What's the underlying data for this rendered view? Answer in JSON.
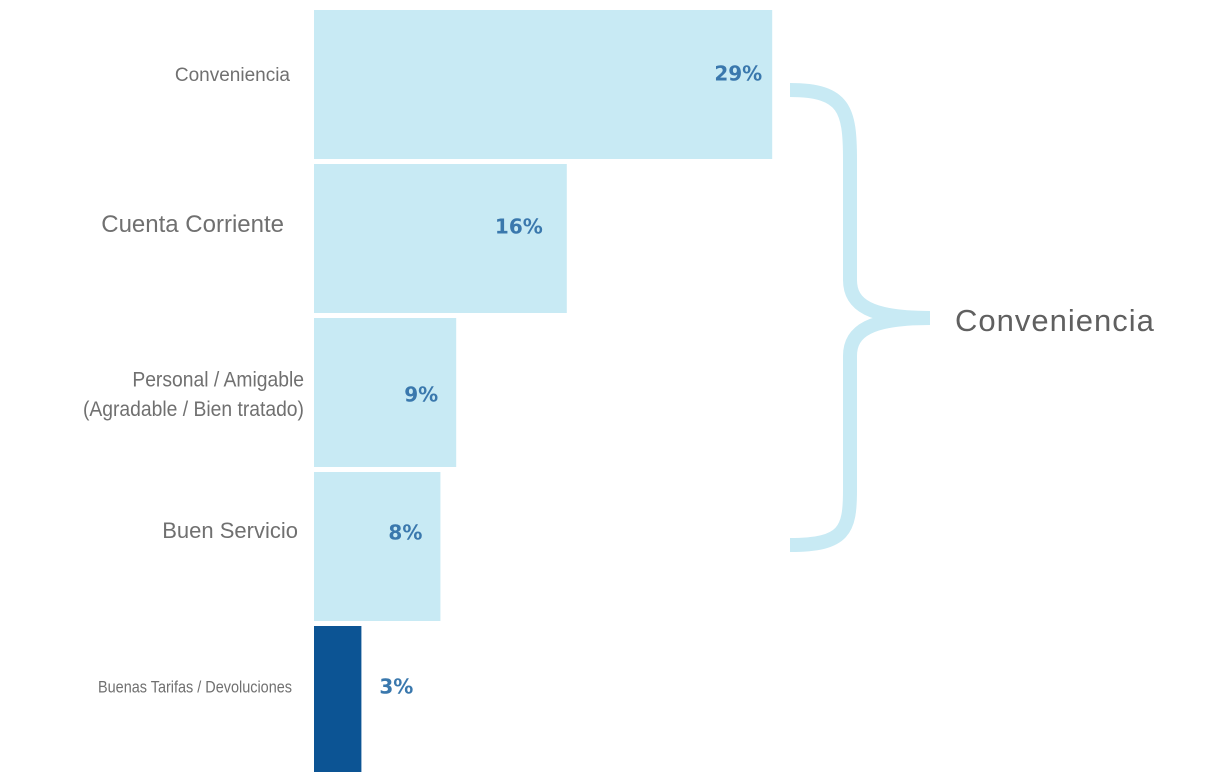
{
  "chart_data": {
    "type": "bar",
    "orientation": "horizontal",
    "categories": [
      "Conveniencia",
      "Cuenta Corriente",
      "Personal / Amigable (Agradable / Bien tratado)",
      "Buen Servicio",
      "Buenas Tarifas / Devoluciones"
    ],
    "category_lines": [
      [
        "Conveniencia"
      ],
      [
        "Cuenta Corriente"
      ],
      [
        "Personal / Amigable",
        "(Agradable / Bien tratado)"
      ],
      [
        "Buen Servicio"
      ],
      [
        "Buenas Tarifas / Devoluciones"
      ]
    ],
    "values": [
      29,
      16,
      9,
      8,
      3
    ],
    "value_labels": [
      "29%",
      "16%",
      "9%",
      "8%",
      "3%"
    ],
    "unit": "%",
    "bar_colors": [
      "#c8eaf4",
      "#c8eaf4",
      "#c8eaf4",
      "#c8eaf4",
      "#0c5494"
    ],
    "value_label_color": "#3a78ad",
    "bracket": {
      "label": "Conveniencia",
      "spans_categories": [
        0,
        1,
        2,
        3
      ],
      "color": "#c8eaf4"
    },
    "grid": false,
    "legend": "none"
  }
}
